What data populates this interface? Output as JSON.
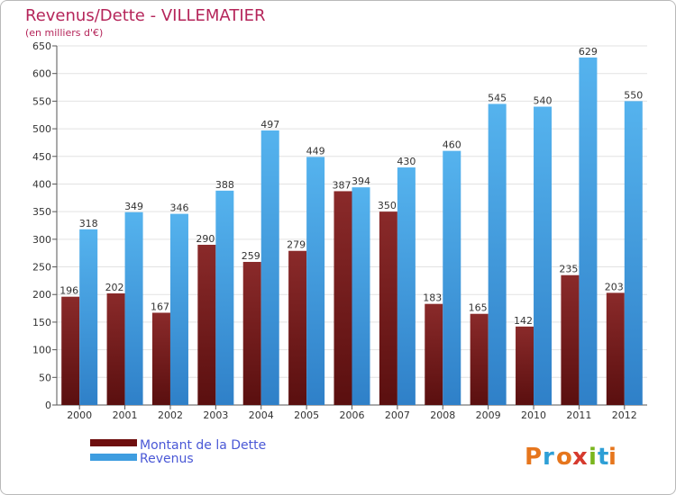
{
  "chart_data": {
    "type": "bar",
    "title": "Revenus/Dette - VILLEMATIER",
    "subtitle": "(en milliers d'€)",
    "categories": [
      "2000",
      "2001",
      "2002",
      "2003",
      "2004",
      "2005",
      "2006",
      "2007",
      "2008",
      "2009",
      "2010",
      "2011",
      "2012"
    ],
    "series": [
      {
        "name": "Montant de la Dette",
        "values": [
          196,
          202,
          167,
          290,
          259,
          279,
          387,
          350,
          183,
          165,
          142,
          235,
          203
        ],
        "color": "#7a1b1b"
      },
      {
        "name": "Revenus",
        "values": [
          318,
          349,
          346,
          388,
          497,
          449,
          394,
          430,
          460,
          545,
          540,
          629,
          550
        ],
        "color": "#3e9de0"
      }
    ],
    "ylim": [
      0,
      650
    ],
    "yticks": [
      0,
      50,
      100,
      150,
      200,
      250,
      300,
      350,
      400,
      450,
      500,
      550,
      600,
      650
    ],
    "grid": true,
    "legend_position": "bottom-left",
    "title_color": "#b5255a",
    "legend_text_color": "#4a58d6"
  },
  "logo": {
    "letters": [
      "P",
      "r",
      "o",
      "x",
      "i",
      "t",
      "i"
    ],
    "colors": [
      "#e6761d",
      "#2e9fd6",
      "#e6761d",
      "#d63a2e",
      "#7ab51d",
      "#2e9fd6",
      "#e6761d"
    ]
  }
}
